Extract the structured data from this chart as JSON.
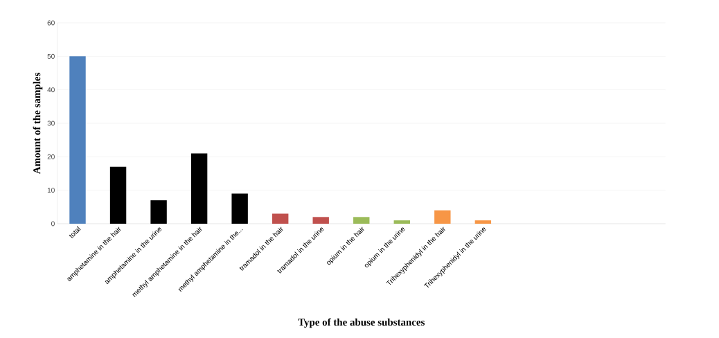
{
  "chart_data": {
    "type": "bar",
    "xlabel": "Type of the abuse substances",
    "ylabel": "Amount of the samples",
    "categories": [
      "total",
      "amphetamine in the hair",
      "amphetamine in the urine",
      "methyl amphetamine in the hair",
      "methyl amphetamine in the...",
      "tramadol in the hair",
      "tramadol in the urine",
      "opium in the hair",
      "opium in the urine",
      "Trihexyphenidyl in the hair",
      "Trihexyphenidyl in the urine",
      null,
      null,
      null,
      null
    ],
    "values": [
      50,
      17,
      7,
      21,
      9,
      3,
      2,
      2,
      1,
      4,
      1,
      null,
      null,
      null,
      null
    ],
    "colors": [
      "#4f81bd",
      "#000000",
      "#000000",
      "#000000",
      "#000000",
      "#c0504d",
      "#c0504d",
      "#9bbb59",
      "#9bbb59",
      "#f79646",
      "#f79646",
      "#000000",
      "#000000",
      "#000000",
      "#000000"
    ],
    "ylim": [
      0,
      60
    ],
    "yticks": [
      0,
      10,
      20,
      30,
      40,
      50,
      60
    ],
    "grid": "y"
  }
}
